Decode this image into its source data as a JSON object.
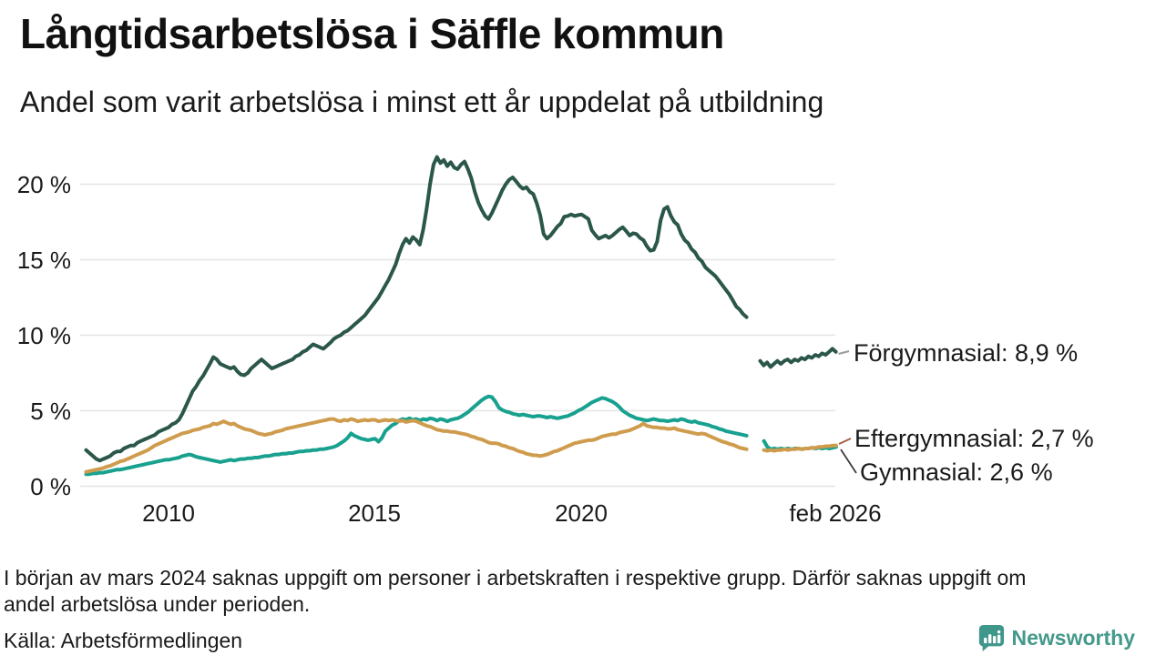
{
  "title": "Långtidsarbetslösa i Säffle kommun",
  "subtitle": "Andel som varit arbetslösa i minst ett år uppdelat på utbildning",
  "chart_data": {
    "type": "line",
    "title": "Långtidsarbetslösa i Säffle kommun",
    "subtitle": "Andel som varit arbetslösa i minst ett år uppdelat på utbildning",
    "unit": "%",
    "grid": true,
    "legend_position": "right-end-labels",
    "y_axis": {
      "tick_labels": [
        "20 %",
        "15 %",
        "10 %",
        "5 %",
        "0 %"
      ],
      "tick_values": [
        20,
        15,
        10,
        5,
        0
      ],
      "min": 0,
      "max": 22
    },
    "x_axis": {
      "tick_labels": [
        "2010",
        "2015",
        "2020",
        "feb 2026"
      ],
      "tick_years": [
        2010,
        2015,
        2020,
        2026.17
      ],
      "range_years": [
        2008,
        2026.17
      ]
    },
    "series": [
      {
        "name": "Förgymnasial",
        "end_value_label": "8,9 %",
        "end_label": "Förgymnasial: 8,9 %",
        "color": "#2b574b",
        "segments": [
          {
            "start_year": 2008,
            "points_per_year": 12,
            "values": [
              2.4,
              2.2,
              2.0,
              1.8,
              1.7,
              1.8,
              1.9,
              2.0,
              2.2,
              2.3,
              2.3,
              2.5,
              2.6,
              2.7,
              2.7,
              2.9,
              3.0,
              3.1,
              3.2,
              3.3,
              3.4,
              3.6,
              3.7,
              3.8,
              3.9,
              4.1,
              4.2,
              4.4,
              4.8,
              5.3,
              5.8,
              6.3,
              6.6,
              7.0,
              7.3,
              7.7,
              8.1,
              8.55,
              8.4,
              8.1,
              8.0,
              7.9,
              7.8,
              7.9,
              7.6,
              7.4,
              7.35,
              7.5,
              7.8,
              8.0,
              8.2,
              8.4,
              8.2,
              8.0,
              7.8,
              7.9,
              8.0,
              8.1,
              8.2,
              8.3,
              8.4,
              8.6,
              8.7,
              8.9,
              9.0,
              9.2,
              9.4,
              9.3,
              9.2,
              9.1,
              9.3,
              9.5,
              9.75,
              9.9,
              10.0,
              10.2,
              10.3,
              10.5,
              10.7,
              10.9,
              11.1,
              11.3,
              11.6,
              11.9,
              12.2,
              12.5,
              12.9,
              13.3,
              13.7,
              14.2,
              14.7,
              15.4,
              16.0,
              16.4,
              16.1,
              16.5,
              16.3,
              16.0,
              17.0,
              18.4,
              20.0,
              21.3,
              21.8,
              21.4,
              21.6,
              21.2,
              21.45,
              21.1,
              21.0,
              21.3,
              21.5,
              21.0,
              20.4,
              19.5,
              18.8,
              18.3,
              17.9,
              17.7,
              18.1,
              18.6,
              19.1,
              19.6,
              20.0,
              20.3,
              20.45,
              20.2,
              19.9,
              19.7,
              19.8,
              19.5,
              19.35,
              18.75,
              17.95,
              16.7,
              16.4,
              16.6,
              16.9,
              17.2,
              17.4,
              17.85,
              17.9,
              18.0,
              17.9,
              17.95,
              18.0,
              17.85,
              17.7,
              16.95,
              16.65,
              16.4,
              16.5,
              16.6,
              16.45,
              16.6,
              16.8,
              17.0,
              17.15,
              16.9,
              16.6,
              16.75,
              16.7,
              16.45,
              16.3,
              15.9,
              15.6,
              15.65,
              16.2,
              17.6,
              18.35,
              18.5,
              17.9,
              17.5,
              17.3,
              16.7,
              16.3,
              16.1,
              15.7,
              15.5,
              15.1,
              14.9,
              14.5,
              14.3,
              14.1,
              13.9,
              13.6,
              13.3,
              13.0,
              12.7,
              12.3,
              11.9,
              11.7,
              11.4,
              11.2
            ]
          },
          {
            "start_year": 2024.33,
            "points_per_year": 12,
            "values": [
              8.3,
              8.0,
              8.2,
              7.9,
              8.1,
              8.3,
              8.1,
              8.3,
              8.4,
              8.2,
              8.4,
              8.3,
              8.5,
              8.4,
              8.6,
              8.5,
              8.7,
              8.6,
              8.8,
              8.7,
              8.9,
              9.1,
              8.9
            ]
          }
        ]
      },
      {
        "name": "Eftergymnasial",
        "end_value_label": "2,7 %",
        "end_label": "Eftergymnasial: 2,7 %",
        "color": "#cf9c4e",
        "segments": [
          {
            "start_year": 2008,
            "points_per_year": 12,
            "values": [
              0.95,
              1.0,
              1.05,
              1.1,
              1.15,
              1.2,
              1.3,
              1.35,
              1.45,
              1.55,
              1.65,
              1.7,
              1.8,
              1.9,
              2.0,
              2.1,
              2.2,
              2.3,
              2.4,
              2.55,
              2.7,
              2.8,
              2.9,
              3.0,
              3.1,
              3.2,
              3.3,
              3.4,
              3.5,
              3.55,
              3.6,
              3.7,
              3.75,
              3.8,
              3.9,
              3.95,
              4.0,
              4.15,
              4.1,
              4.2,
              4.3,
              4.2,
              4.1,
              4.15,
              4.0,
              3.9,
              3.8,
              3.75,
              3.7,
              3.6,
              3.5,
              3.45,
              3.4,
              3.45,
              3.5,
              3.6,
              3.65,
              3.7,
              3.8,
              3.85,
              3.9,
              3.95,
              4.0,
              4.05,
              4.1,
              4.15,
              4.2,
              4.25,
              4.3,
              4.35,
              4.4,
              4.45,
              4.45,
              4.35,
              4.3,
              4.4,
              4.35,
              4.45,
              4.4,
              4.3,
              4.35,
              4.4,
              4.35,
              4.4,
              4.4,
              4.3,
              4.35,
              4.4,
              4.35,
              4.4,
              4.35,
              4.3,
              4.35,
              4.25,
              4.3,
              4.35,
              4.3,
              4.2,
              4.1,
              4.0,
              3.95,
              3.85,
              3.75,
              3.7,
              3.65,
              3.65,
              3.6,
              3.6,
              3.55,
              3.5,
              3.45,
              3.4,
              3.3,
              3.25,
              3.15,
              3.1,
              3.0,
              2.9,
              2.85,
              2.85,
              2.8,
              2.7,
              2.65,
              2.55,
              2.5,
              2.4,
              2.3,
              2.25,
              2.15,
              2.1,
              2.05,
              2.05,
              2.0,
              2.05,
              2.1,
              2.2,
              2.3,
              2.35,
              2.45,
              2.55,
              2.65,
              2.75,
              2.85,
              2.9,
              2.95,
              3.0,
              3.05,
              3.05,
              3.1,
              3.2,
              3.3,
              3.35,
              3.4,
              3.45,
              3.45,
              3.55,
              3.6,
              3.65,
              3.7,
              3.8,
              3.9,
              4.0,
              4.15,
              4.0,
              3.95,
              3.9,
              3.9,
              3.85,
              3.85,
              3.8,
              3.8,
              3.85,
              3.75,
              3.7,
              3.65,
              3.6,
              3.55,
              3.5,
              3.45,
              3.5,
              3.45,
              3.35,
              3.25,
              3.15,
              3.05,
              2.95,
              2.9,
              2.8,
              2.75,
              2.65,
              2.55,
              2.5,
              2.45
            ]
          },
          {
            "start_year": 2024.42,
            "points_per_year": 12,
            "values": [
              2.4,
              2.35,
              2.4,
              2.35,
              2.4,
              2.4,
              2.45,
              2.4,
              2.45,
              2.45,
              2.5,
              2.45,
              2.5,
              2.5,
              2.55,
              2.55,
              2.6,
              2.6,
              2.65,
              2.65,
              2.7,
              2.7
            ]
          }
        ]
      },
      {
        "name": "Gymnasial",
        "end_value_label": "2,6 %",
        "end_label": "Gymnasial: 2,6 %",
        "color": "#19a18f",
        "segments": [
          {
            "start_year": 2008,
            "points_per_year": 12,
            "values": [
              0.8,
              0.8,
              0.85,
              0.85,
              0.9,
              0.9,
              0.95,
              1.0,
              1.05,
              1.1,
              1.1,
              1.15,
              1.2,
              1.25,
              1.3,
              1.35,
              1.4,
              1.45,
              1.5,
              1.55,
              1.6,
              1.65,
              1.7,
              1.75,
              1.75,
              1.8,
              1.85,
              1.9,
              2.0,
              2.05,
              2.1,
              2.05,
              1.95,
              1.9,
              1.85,
              1.8,
              1.75,
              1.7,
              1.65,
              1.6,
              1.65,
              1.7,
              1.75,
              1.7,
              1.75,
              1.8,
              1.8,
              1.85,
              1.85,
              1.9,
              1.9,
              1.95,
              2.0,
              2.0,
              2.05,
              2.1,
              2.1,
              2.15,
              2.15,
              2.2,
              2.2,
              2.25,
              2.3,
              2.3,
              2.35,
              2.35,
              2.4,
              2.4,
              2.45,
              2.45,
              2.5,
              2.55,
              2.6,
              2.7,
              2.85,
              3.0,
              3.2,
              3.5,
              3.35,
              3.25,
              3.15,
              3.1,
              3.05,
              3.1,
              3.15,
              2.95,
              3.2,
              3.65,
              3.85,
              4.05,
              4.15,
              4.35,
              4.45,
              4.4,
              4.5,
              4.4,
              4.45,
              4.35,
              4.45,
              4.4,
              4.5,
              4.45,
              4.35,
              4.45,
              4.4,
              4.3,
              4.4,
              4.45,
              4.5,
              4.6,
              4.75,
              4.9,
              5.1,
              5.3,
              5.5,
              5.7,
              5.85,
              5.95,
              5.9,
              5.6,
              5.2,
              5.05,
              4.95,
              4.9,
              4.8,
              4.75,
              4.7,
              4.75,
              4.7,
              4.65,
              4.6,
              4.65,
              4.65,
              4.6,
              4.55,
              4.6,
              4.55,
              4.5,
              4.55,
              4.6,
              4.65,
              4.75,
              4.85,
              5.0,
              5.1,
              5.25,
              5.4,
              5.55,
              5.65,
              5.75,
              5.85,
              5.8,
              5.7,
              5.6,
              5.45,
              5.25,
              5.0,
              4.85,
              4.7,
              4.6,
              4.5,
              4.45,
              4.4,
              4.35,
              4.4,
              4.45,
              4.4,
              4.35,
              4.35,
              4.3,
              4.35,
              4.4,
              4.35,
              4.45,
              4.4,
              4.3,
              4.25,
              4.3,
              4.2,
              4.15,
              4.1,
              4.05,
              3.95,
              3.9,
              3.8,
              3.75,
              3.65,
              3.6,
              3.55,
              3.5,
              3.45,
              3.4,
              3.35
            ]
          },
          {
            "start_year": 2024.42,
            "points_per_year": 12,
            "values": [
              3.0,
              2.6,
              2.45,
              2.5,
              2.45,
              2.5,
              2.45,
              2.5,
              2.45,
              2.5,
              2.5,
              2.45,
              2.5,
              2.5,
              2.55,
              2.5,
              2.55,
              2.5,
              2.55,
              2.5,
              2.55,
              2.6
            ]
          }
        ]
      }
    ]
  },
  "footer": {
    "note": "I början av mars 2024 saknas uppgift om personer i arbetskraften i respektive grupp. Därför saknas uppgift om\nandel arbetslösa under perioden.",
    "source": "Källa: Arbetsförmedlingen",
    "logo_text": "Newsworthy",
    "logo_color": "#44998b"
  }
}
